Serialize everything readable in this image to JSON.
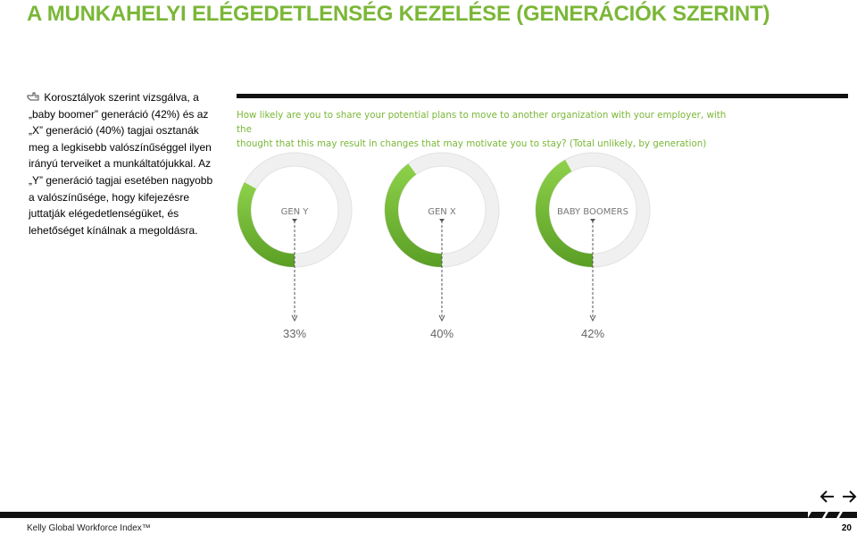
{
  "page": {
    "title": "A MUNKAHELYI ELÉGEDETLENSÉG KEZELÉSE (GENERÁCIÓK SZERINT)",
    "intro_lines": [
      "Korosztályok szerint vizsgálva, a",
      "„baby boomer” generáció (42%) és az",
      "„X” generáció (40%) tagjai osztanák",
      "meg a legkisebb valószínűséggel ilyen",
      "irányú terveiket a munkáltatójukkal. Az",
      "„Y” generáció tagjai esetében nagyobb",
      "a valószínűsége, hogy kifejezésre",
      "juttatják elégedetlenségüket, és",
      "lehetőséget kínálnak a megoldásra."
    ],
    "bullet_icon": "hand-pointer-icon"
  },
  "question": {
    "line1": "How likely are you to share your potential plans to move to another organization with your employer, with the",
    "line2": "thought that this may result in changes that may motivate you to stay? (Total unlikely, by generation)"
  },
  "chart_data": {
    "type": "pie",
    "subtype": "donut",
    "title": "",
    "unit": "%",
    "categories": [
      "GEN Y",
      "GEN X",
      "BABY BOOMERS"
    ],
    "values": [
      33,
      40,
      42
    ],
    "value_labels": [
      "33%",
      "40%",
      "42%"
    ],
    "colors": {
      "filled_light": "#8ed14a",
      "filled_dark": "#5a9e25",
      "track": "#f0f0f0",
      "track_stroke": "#e2e2e2",
      "label": "#777777",
      "value_label": "#666666"
    }
  },
  "footer": {
    "source": "Kelly Global Workforce Index™",
    "page_number": "20",
    "prev_icon": "arrow-left-icon",
    "next_icon": "arrow-right-icon"
  }
}
